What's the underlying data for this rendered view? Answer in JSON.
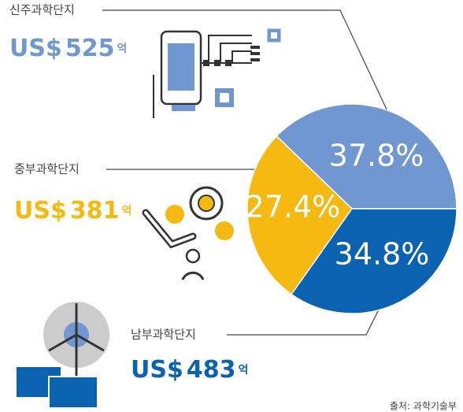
{
  "chart_data": {
    "type": "pie",
    "categories": [
      "신주과학단지",
      "중부과학단지",
      "남부과학단지"
    ],
    "values": [
      37.8,
      27.4,
      34.8
    ],
    "value_labels": [
      "37.8%",
      "27.4%",
      "34.8%"
    ],
    "colors": [
      "#7097cf",
      "#f6b912",
      "#0b62b1"
    ],
    "amounts": [
      525,
      381,
      483
    ],
    "currency": "US$",
    "amount_unit": "억",
    "source": "출처: 과학기술부"
  }
}
